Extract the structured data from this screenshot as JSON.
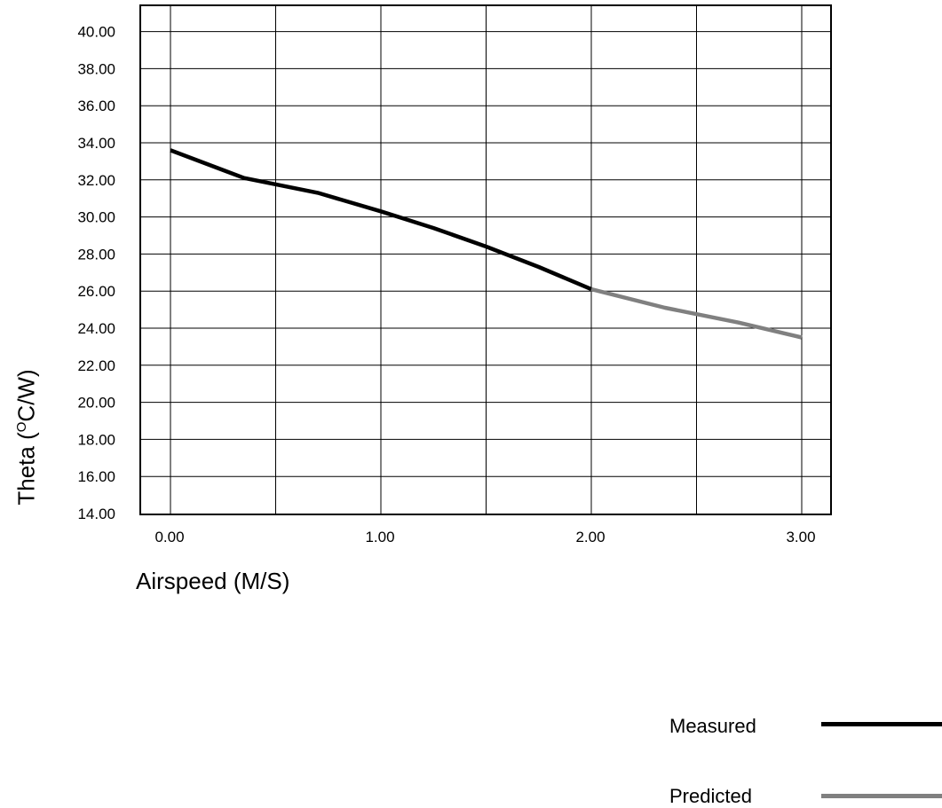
{
  "chart_data": {
    "type": "line",
    "title": "",
    "xlabel": "Airspeed (M/S)",
    "ylabel": {
      "prefix": "Theta (",
      "sup": "O",
      "suffix": "C/W)"
    },
    "xlim": [
      -0.3,
      3.3
    ],
    "ylim": [
      14,
      41
    ],
    "xticks": [
      "0.00",
      "1.00",
      "2.00",
      "3.00"
    ],
    "yticks": [
      "40.00",
      "38.00",
      "36.00",
      "34.00",
      "32.00",
      "30.00",
      "28.00",
      "26.00",
      "24.00",
      "22.00",
      "20.00",
      "18.00",
      "16.00",
      "14.00"
    ],
    "grid": true,
    "legend_position": "bottom-right",
    "series": [
      {
        "name": "Measured",
        "color": "#000000",
        "x": [
          0.0,
          0.35,
          0.7,
          1.0,
          1.25,
          1.5,
          1.75,
          2.0
        ],
        "y": [
          33.6,
          32.1,
          31.3,
          30.3,
          29.4,
          28.4,
          27.3,
          26.1
        ]
      },
      {
        "name": "Predicted",
        "color": "#808080",
        "x": [
          2.0,
          2.35,
          2.7,
          3.0
        ],
        "y": [
          26.1,
          25.1,
          24.3,
          23.5
        ]
      }
    ]
  }
}
